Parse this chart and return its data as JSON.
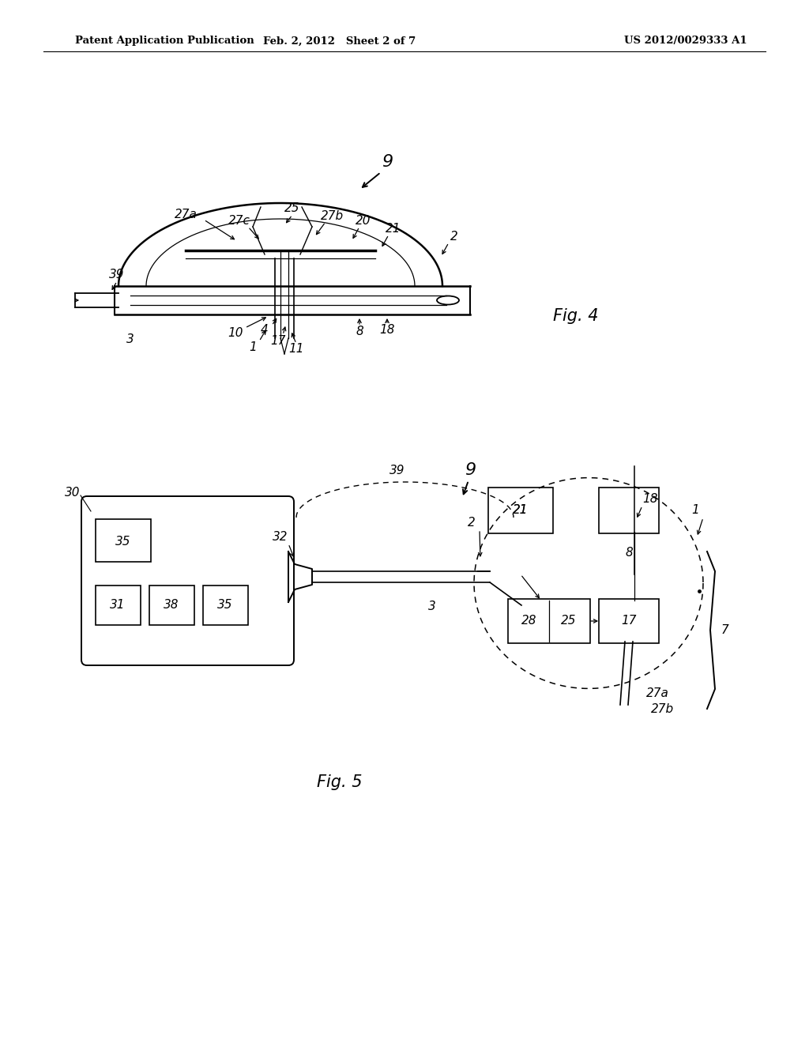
{
  "background_color": "#ffffff",
  "header_left": "Patent Application Publication",
  "header_center": "Feb. 2, 2012   Sheet 2 of 7",
  "header_right": "US 2012/0029333 A1",
  "fig4_label": "Fig. 4",
  "fig5_label": "Fig. 5"
}
